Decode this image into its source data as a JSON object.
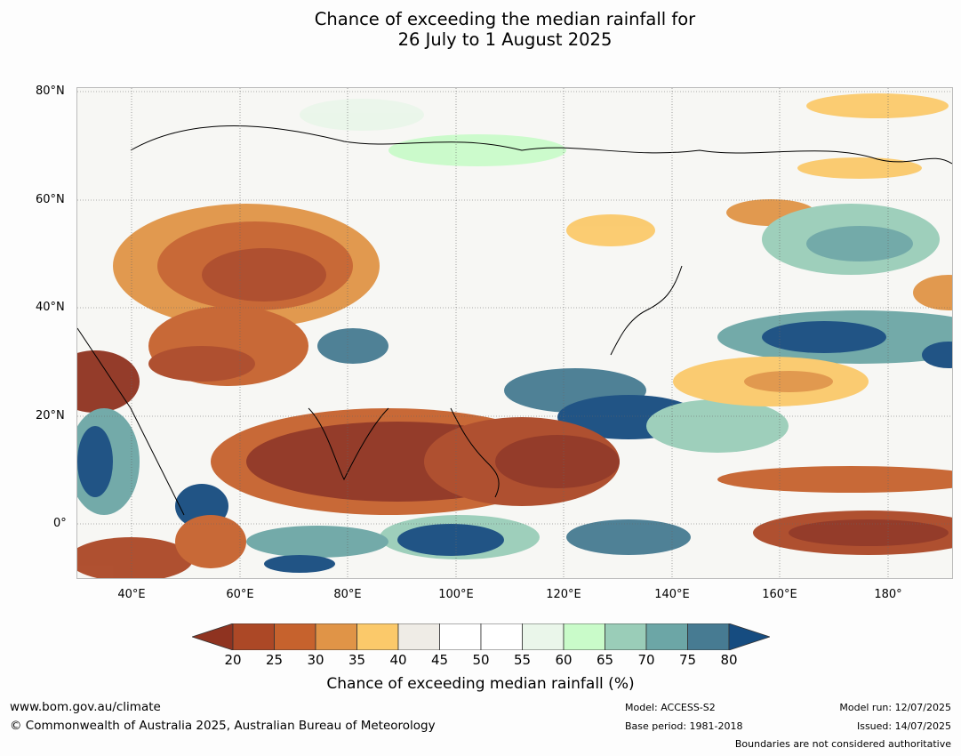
{
  "title": {
    "line1": "Chance of exceeding the median rainfall for",
    "line2": "26 July to 1 August 2025"
  },
  "map": {
    "lat_labels": [
      "80°N",
      "60°N",
      "40°N",
      "20°N",
      "0°"
    ],
    "lon_labels": [
      "40°E",
      "60°E",
      "80°E",
      "100°E",
      "120°E",
      "140°E",
      "160°E",
      "180°"
    ]
  },
  "colorbar": {
    "title": "Chance of exceeding median rainfall (%)",
    "ticks": [
      "20",
      "25",
      "30",
      "35",
      "40",
      "45",
      "50",
      "55",
      "60",
      "65",
      "70",
      "75",
      "80"
    ],
    "colors": [
      "#8f3320",
      "#ac4826",
      "#c6622d",
      "#e09447",
      "#fbc96a",
      "#efece6",
      "#ffffff",
      "#ffffff",
      "#eaf6ea",
      "#c9fbc9",
      "#9acdb8",
      "#6ca6a6",
      "#477b92",
      "#164c80"
    ]
  },
  "footer": {
    "url": "www.bom.gov.au/climate",
    "copyright": "© Commonwealth of Australia 2025, Australian Bureau of Meteorology",
    "model": "Model: ACCESS-S2",
    "base_period": "Base period: 1981-2018",
    "model_run": "Model run: 12/07/2025",
    "issued": "Issued: 14/07/2025",
    "boundaries": "Boundaries are not considered authoritative"
  }
}
